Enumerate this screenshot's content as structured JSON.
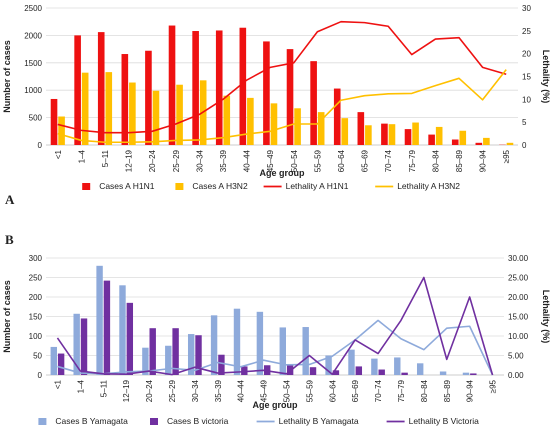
{
  "chart_data": [
    {
      "type": "bar",
      "panel_label": "A",
      "categories": [
        "<1",
        "1–4",
        "5–11",
        "12–19",
        "20–24",
        "25–29",
        "30–34",
        "35–39",
        "40–44",
        "45–49",
        "50–54",
        "55–59",
        "60–64",
        "65–69",
        "70–74",
        "75–79",
        "80–84",
        "85–89",
        "90–94",
        "≥95"
      ],
      "xlabel": "Age group",
      "ylabel": "Number of cases",
      "y2label": "Lethality (%)",
      "ylim": [
        0,
        2500
      ],
      "yticks": [
        "0",
        "500",
        "1000",
        "1500",
        "2000",
        "2500"
      ],
      "y2lim": [
        0,
        30
      ],
      "y2ticks": [
        "0",
        "5",
        "10",
        "15",
        "20",
        "25",
        "30"
      ],
      "grid": true,
      "legend_position": "bottom",
      "bar_series": [
        {
          "name": "Cases A H1N1",
          "color": "#ee1111",
          "values": [
            840,
            2000,
            2060,
            1660,
            1720,
            2180,
            2080,
            2090,
            2140,
            1890,
            1750,
            1530,
            1030,
            600,
            390,
            290,
            190,
            100,
            40,
            5
          ]
        },
        {
          "name": "Cases A H3N2",
          "color": "#ffc000",
          "values": [
            520,
            1320,
            1330,
            1140,
            990,
            1100,
            1180,
            900,
            860,
            760,
            670,
            600,
            490,
            360,
            380,
            410,
            330,
            260,
            130,
            40
          ]
        }
      ],
      "line_series": [
        {
          "name": "Lethality A H1N1",
          "color": "#ee1111",
          "values": [
            4.5,
            3.2,
            2.7,
            2.7,
            3.0,
            4.6,
            6.7,
            10.0,
            14.2,
            17.0,
            18.0,
            24.8,
            27.0,
            26.8,
            26.0,
            19.8,
            23.2,
            23.5,
            17.0,
            15.5
          ]
        },
        {
          "name": "Lethality A H3N2",
          "color": "#ffc000",
          "values": [
            2.5,
            1.0,
            0.6,
            0.6,
            0.7,
            1.0,
            1.1,
            1.6,
            2.4,
            3.0,
            4.6,
            4.6,
            9.8,
            10.8,
            11.2,
            11.3,
            13.0,
            14.6,
            9.9,
            16.5
          ]
        }
      ]
    },
    {
      "type": "bar",
      "panel_label": "B",
      "categories": [
        "<1",
        "1–4",
        "5–11",
        "12–19",
        "20–24",
        "25–29",
        "30–34",
        "35–39",
        "40–44",
        "45–49",
        "50–54",
        "55–59",
        "60–64",
        "65–69",
        "70–74",
        "75–79",
        "80–84",
        "85–89",
        "90–94",
        "≥95"
      ],
      "xlabel": "Age group",
      "ylabel": "Number of cases",
      "y2label": "Lethality (%)",
      "ylim": [
        0,
        300
      ],
      "yticks": [
        "0",
        "50",
        "100",
        "150",
        "200",
        "250",
        "300"
      ],
      "y2lim": [
        0,
        30
      ],
      "y2ticks": [
        "0.00",
        "5.00",
        "10.00",
        "15.00",
        "20.00",
        "25.00",
        "30.00"
      ],
      "grid": true,
      "legend_position": "bottom",
      "bar_series": [
        {
          "name": "Cases B Yamagata",
          "color": "#8eaadb",
          "values": [
            72,
            157,
            280,
            230,
            70,
            75,
            105,
            153,
            170,
            162,
            122,
            123,
            50,
            65,
            42,
            45,
            30,
            9,
            6,
            0
          ]
        },
        {
          "name": "Cases B victoria",
          "color": "#7030a0",
          "values": [
            55,
            145,
            242,
            185,
            120,
            120,
            102,
            52,
            22,
            25,
            25,
            20,
            12,
            22,
            14,
            6,
            0,
            0,
            4,
            0
          ]
        }
      ],
      "line_series": [
        {
          "name": "Lethality B Yamagata",
          "color": "#8eaadb",
          "values": [
            2.2,
            0.5,
            0.3,
            0.8,
            1.0,
            1.7,
            1.2,
            3.2,
            2.1,
            3.8,
            2.6,
            2.7,
            4.8,
            9.0,
            14.0,
            9.3,
            6.5,
            12.0,
            12.5,
            0.0
          ]
        },
        {
          "name": "Lethality B Victoria",
          "color": "#7030a0",
          "values": [
            9.5,
            1.0,
            0.3,
            0.2,
            1.0,
            0.1,
            2.0,
            0.5,
            0.8,
            1.2,
            0.3,
            5.0,
            0.2,
            9.0,
            5.5,
            14.0,
            25.0,
            4.0,
            20.0,
            0.0
          ]
        }
      ]
    }
  ]
}
